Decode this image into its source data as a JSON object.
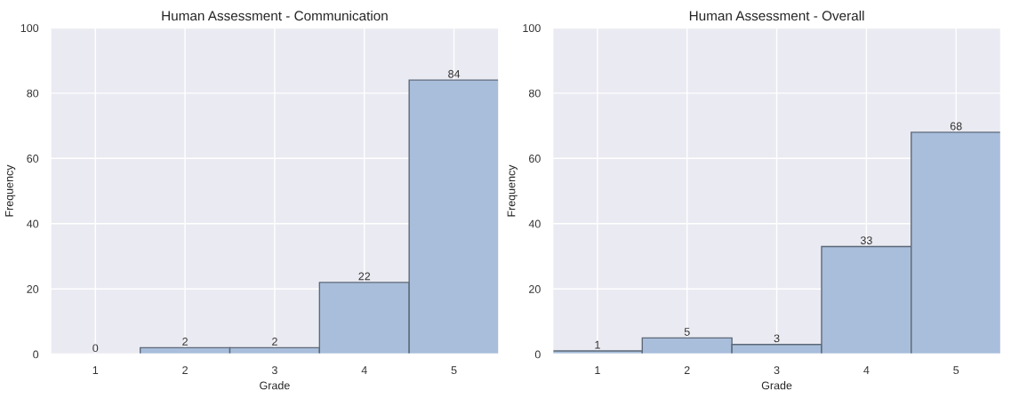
{
  "chart_data": [
    {
      "type": "histogram",
      "title": "Human Assessment - Communication",
      "xlabel": "Grade",
      "ylabel": "Frequency",
      "bins": [
        0.5,
        1.5,
        2.5,
        3.5,
        4.5,
        5.5
      ],
      "values": [
        0,
        2,
        2,
        22,
        84
      ],
      "color": "#a9bedb",
      "xlim": [
        0.5,
        5.5
      ],
      "xticks": [
        1,
        2,
        3,
        4,
        5
      ],
      "ylim": [
        0,
        100
      ],
      "yticks": [
        0,
        20,
        40,
        60,
        80,
        100
      ],
      "grid": true,
      "data_labels": true
    },
    {
      "type": "histogram",
      "title": "Human Assessment - Overall",
      "xlabel": "Grade",
      "ylabel": "Frequency",
      "bins": [
        0.5,
        1.5,
        2.5,
        3.5,
        4.5,
        5.5
      ],
      "values": [
        1,
        5,
        3,
        33,
        68
      ],
      "color": "#a9bedb",
      "xlim": [
        0.5,
        5.5
      ],
      "xticks": [
        1,
        2,
        3,
        4,
        5
      ],
      "ylim": [
        0,
        100
      ],
      "yticks": [
        0,
        20,
        40,
        60,
        80,
        100
      ],
      "grid": true,
      "data_labels": true
    }
  ]
}
